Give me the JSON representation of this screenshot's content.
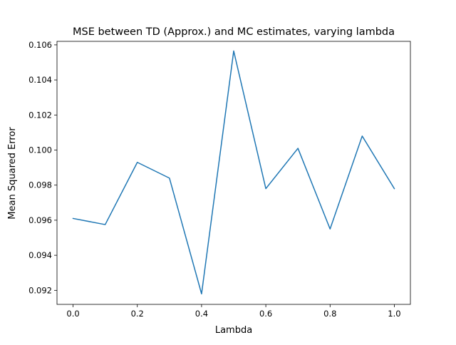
{
  "chart_data": {
    "type": "line",
    "title": "MSE between TD (Approx.) and MC estimates, varying lambda",
    "xlabel": "Lambda",
    "ylabel": "Mean Squared Error",
    "xlim": [
      -0.05,
      1.05
    ],
    "ylim": [
      0.0912,
      0.1062
    ],
    "grid": false,
    "x_ticks": [
      0.0,
      0.2,
      0.4,
      0.6,
      0.8,
      1.0
    ],
    "x_tick_labels": [
      "0.0",
      "0.2",
      "0.4",
      "0.6",
      "0.8",
      "1.0"
    ],
    "y_ticks": [
      0.092,
      0.094,
      0.096,
      0.098,
      0.1,
      0.102,
      0.104,
      0.106
    ],
    "y_tick_labels": [
      "0.092",
      "0.094",
      "0.096",
      "0.098",
      "0.100",
      "0.102",
      "0.104",
      "0.106"
    ],
    "series": [
      {
        "color": "#1f77b4",
        "x": [
          0.0,
          0.1,
          0.2,
          0.3,
          0.4,
          0.5,
          0.6,
          0.7,
          0.8,
          0.9,
          1.0
        ],
        "y": [
          0.0961,
          0.09575,
          0.0993,
          0.0984,
          0.0918,
          0.10565,
          0.0978,
          0.1001,
          0.0955,
          0.1008,
          0.0978
        ]
      }
    ]
  }
}
